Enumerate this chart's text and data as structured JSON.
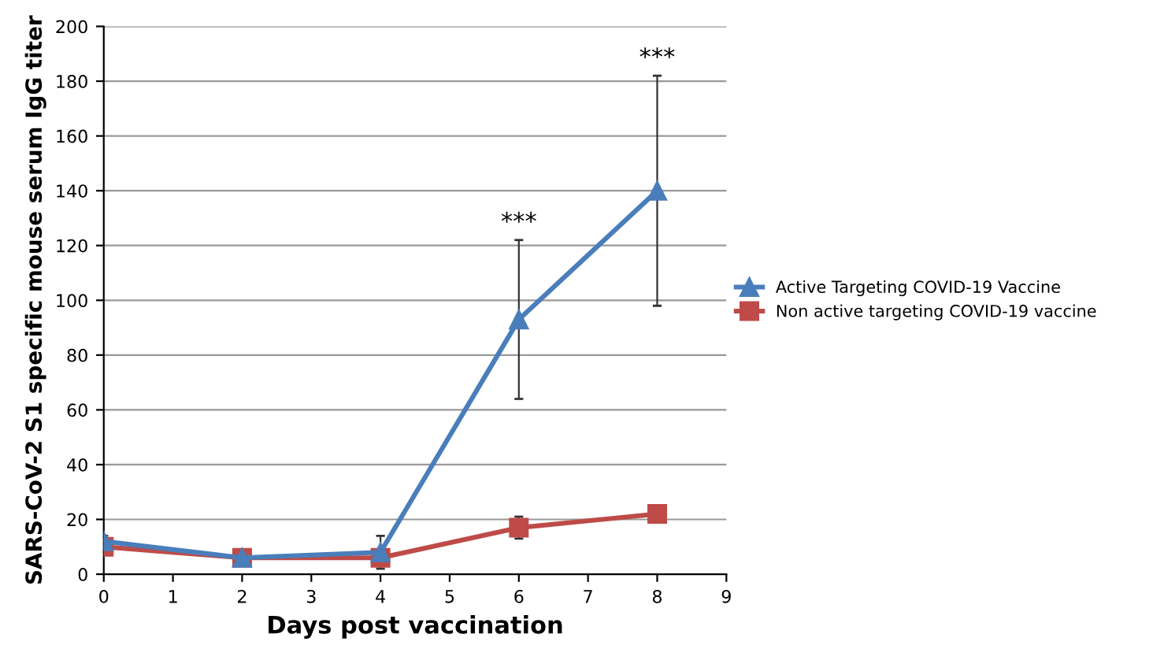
{
  "chart_data": {
    "type": "line",
    "xlabel": "Days post vaccination",
    "ylabel": "SARS-CoV-2 S1 specific mouse serum IgG titer",
    "x": [
      0,
      2,
      4,
      6,
      8
    ],
    "series": [
      {
        "name": "Active Targeting COVID-19 Vaccine",
        "color": "#4a7ebb",
        "marker": "triangle",
        "values": [
          12,
          6,
          8,
          93,
          140
        ],
        "errors": [
          2,
          null,
          6,
          [
            64,
            122
          ],
          [
            98,
            182
          ]
        ]
      },
      {
        "name": "Non active targeting COVID-19 vaccine",
        "color": "#be4b48",
        "marker": "square",
        "values": [
          10,
          6,
          6,
          17,
          22
        ],
        "errors": [
          null,
          null,
          null,
          4,
          null
        ]
      }
    ],
    "xlim": [
      0,
      9
    ],
    "xticks": [
      0,
      1,
      2,
      3,
      4,
      5,
      6,
      7,
      8,
      9
    ],
    "ylim": [
      0,
      200
    ],
    "yticks": [
      0,
      20,
      40,
      60,
      80,
      100,
      120,
      140,
      160,
      180,
      200
    ],
    "grid": "y",
    "legend": "right",
    "line_style": "solid",
    "annotations": [
      {
        "text": "***",
        "x": 6,
        "y": 124
      },
      {
        "text": "***",
        "x": 8,
        "y": 184
      }
    ]
  }
}
